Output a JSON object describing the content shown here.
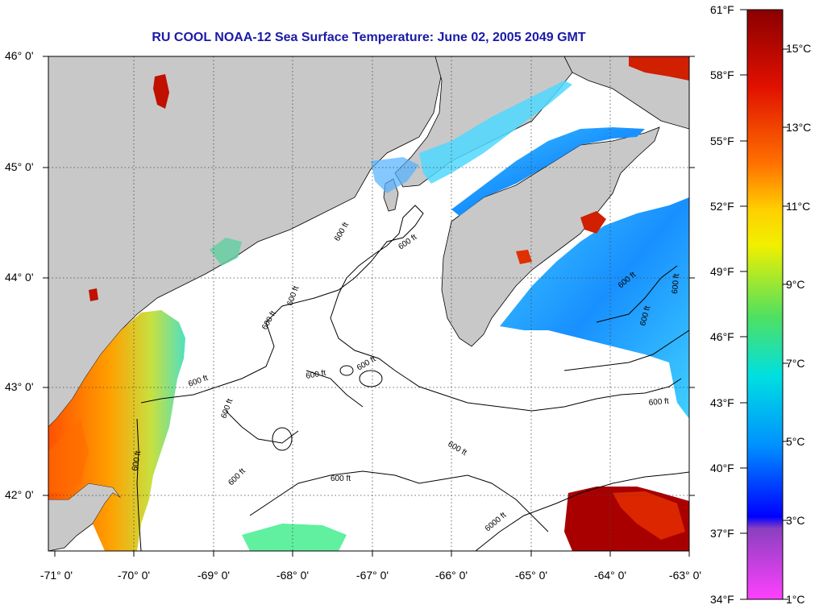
{
  "title": "RU COOL  NOAA-12  Sea Surface Temperature:  June 02, 2005 2049 GMT",
  "lat_labels": [
    "46° 0'",
    "45° 0'",
    "44° 0'",
    "43° 0'",
    "42° 0'"
  ],
  "lon_labels": [
    "-71° 0'",
    "-70° 0'",
    "-69° 0'",
    "-68° 0'",
    "-67° 0'",
    "-66° 0'",
    "-65° 0'",
    "-64° 0'",
    "-63° 0'"
  ],
  "contour_label": "600 ft",
  "contour_label_deep": "6000 ft",
  "fahrenheit_labels": [
    "61°F",
    "58°F",
    "55°F",
    "52°F",
    "49°F",
    "46°F",
    "43°F",
    "40°F",
    "37°F",
    "34°F"
  ],
  "celsius_labels": [
    "15°C",
    "13°C",
    "11°C",
    "9°C",
    "7°C",
    "5°C",
    "3°C",
    "1°C"
  ],
  "colors": {
    "land": "#c8c8c8",
    "title": "#1a1aa8",
    "scale": [
      "#8a0000",
      "#e01000",
      "#ff7000",
      "#ffd000",
      "#f0f000",
      "#50e060",
      "#00e0e0",
      "#0090ff",
      "#0000ff",
      "#8a40c0",
      "#ff40ff"
    ]
  }
}
